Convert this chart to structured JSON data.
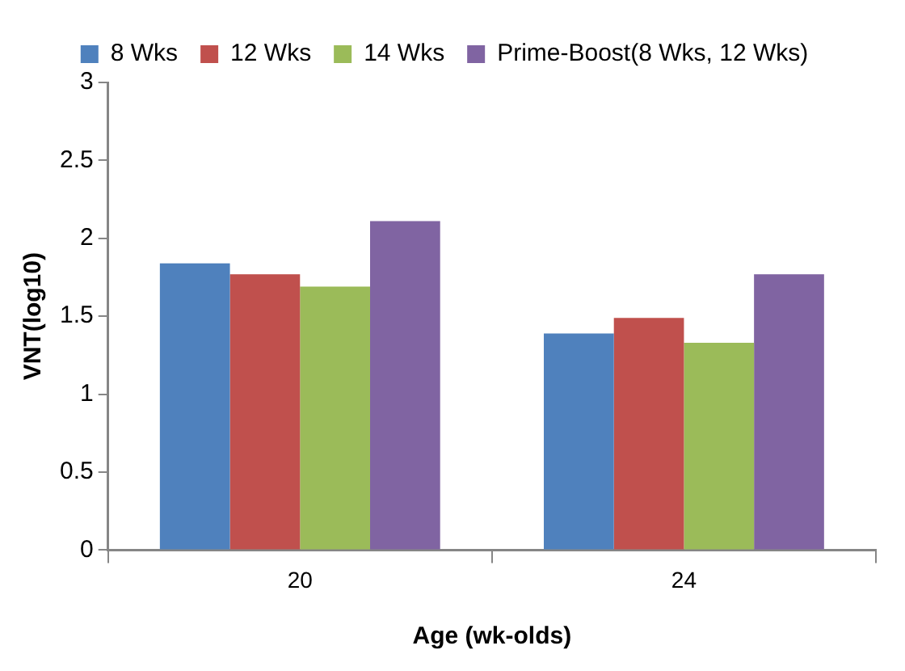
{
  "chart_data": {
    "type": "bar",
    "xlabel": "Age (wk-olds)",
    "ylabel": "VNT(log10)",
    "categories": [
      "20",
      "24"
    ],
    "series": [
      {
        "name": "8 Wks",
        "color": "#4f81bd",
        "values": [
          1.84,
          1.39
        ]
      },
      {
        "name": "12 Wks",
        "color": "#c0504d",
        "values": [
          1.77,
          1.49
        ]
      },
      {
        "name": "14 Wks",
        "color": "#9bbb59",
        "values": [
          1.69,
          1.33
        ]
      },
      {
        "name": "Prime-Boost(8 Wks, 12 Wks)",
        "color": "#8064a2",
        "values": [
          2.11,
          1.77
        ]
      }
    ],
    "ylim": [
      0,
      3
    ],
    "yticks": [
      0,
      0.5,
      1,
      1.5,
      2,
      2.5,
      3
    ],
    "grid": false,
    "legend": "top"
  }
}
